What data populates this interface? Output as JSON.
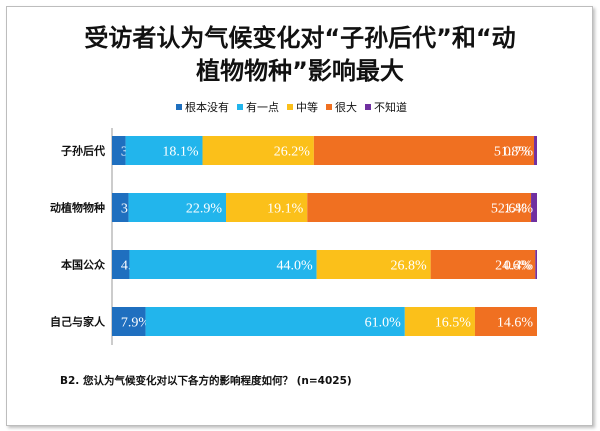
{
  "title_line1": "受访者认为气候变化对“子孙后代”和“动",
  "title_line2": "植物物种”影响最大",
  "footnote": "B2. 您认为气候变化对以下各方的影响程度如何？ (n=4025)",
  "colors": [
    "#1f6fbf",
    "#22b5ec",
    "#fbc01a",
    "#f07021",
    "#7030a0"
  ],
  "chart_data": {
    "type": "bar",
    "orientation": "horizontal",
    "stacked": true,
    "unit": "%",
    "categories": [
      "子孙后代",
      "动植物物种",
      "本国公众",
      "自己与家人"
    ],
    "series": [
      {
        "name": "根本没有",
        "values": [
          3.2,
          3.9,
          4.1,
          7.9
        ]
      },
      {
        "name": "有一点",
        "values": [
          18.1,
          22.9,
          44.0,
          61.0
        ]
      },
      {
        "name": "中等",
        "values": [
          26.2,
          19.1,
          26.8,
          16.5
        ]
      },
      {
        "name": "很大",
        "values": [
          51.8,
          52.6,
          24.6,
          14.6
        ]
      },
      {
        "name": "不知道",
        "values": [
          0.7,
          1.4,
          0.4,
          null
        ]
      }
    ],
    "legend_position": "top"
  }
}
